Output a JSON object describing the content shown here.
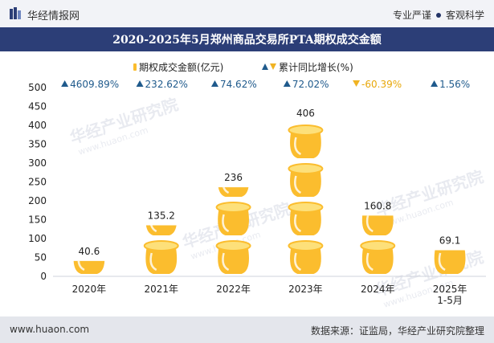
{
  "header": {
    "brand": "华经情报网",
    "tagline_left": "专业严谨",
    "tagline_right": "客观科学"
  },
  "title": "2020-2025年5月郑州商品交易所PTA期权成交金额",
  "legend": {
    "amount": "期权成交金额(亿元)",
    "growth": "累计同比增长(%)"
  },
  "footer": {
    "website": "www.huaon.com",
    "source": "数据来源：证监局，华经产业研究院整理"
  },
  "watermark": {
    "cn": "华经产业研究院",
    "en": "www.huaon.com"
  },
  "colors": {
    "title_bg": "#2c3e77",
    "pot_fill": "#fbbd2e",
    "pot_light": "#fde07a",
    "up_arrow": "#1f5a8c",
    "down_arrow": "#f0b323",
    "growth_text": "#1f5a8c",
    "growth_neg_text": "#e8a80a"
  },
  "chart_data": {
    "type": "bar",
    "categories": [
      "2020年",
      "2021年",
      "2022年",
      "2023年",
      "2024年",
      "2025年\n1-5月"
    ],
    "series": [
      {
        "name": "期权成交金额(亿元)",
        "values": [
          40.6,
          135.2,
          236,
          406,
          160.8,
          69.1
        ]
      }
    ],
    "value_labels": [
      "40.6",
      "135.2",
      "236",
      "406",
      "160.8",
      "69.1"
    ],
    "growth": [
      {
        "label": "4609.89%",
        "direction": "up"
      },
      {
        "label": "232.62%",
        "direction": "up"
      },
      {
        "label": "74.62%",
        "direction": "up"
      },
      {
        "label": "72.02%",
        "direction": "up"
      },
      {
        "label": "-60.39%",
        "direction": "down"
      },
      {
        "label": "1.56%",
        "direction": "up"
      }
    ],
    "ylim": [
      0,
      500
    ],
    "yticks": [
      0,
      50,
      100,
      150,
      200,
      250,
      300,
      350,
      400,
      450,
      500
    ],
    "unit_step": 50,
    "grid": false,
    "legend_position": "top"
  }
}
